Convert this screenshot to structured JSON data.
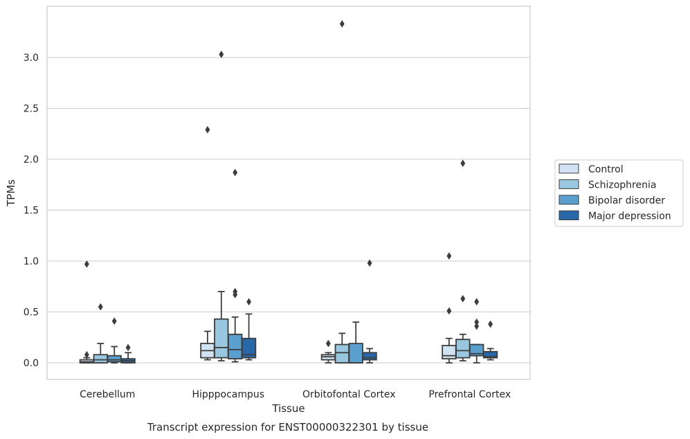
{
  "caption": "Transcript expression for ENST00000322301 by tissue",
  "chart_data": {
    "type": "boxplot",
    "xlabel": "Tissue",
    "ylabel": "TPMs",
    "ylim": [
      -0.16,
      3.48
    ],
    "yticks": [
      "0.0",
      "0.5",
      "1.0",
      "1.5",
      "2.0",
      "2.5",
      "3.0"
    ],
    "ytick_values": [
      0,
      0.5,
      1.0,
      1.5,
      2.0,
      2.5,
      3.0
    ],
    "grid": "horizontal",
    "legend_position": "right",
    "categories": [
      "Cerebellum",
      "Hipppocampus",
      "Orbitofontal Cortex",
      "Prefrontal Cortex"
    ],
    "series": [
      {
        "name": "Control",
        "color": "#d1e2f2",
        "boxes": [
          {
            "whisker_low": 0.0,
            "q1": 0.0,
            "median": 0.01,
            "q3": 0.03,
            "whisker_high": 0.05,
            "outliers": [
              0.08,
              0.97
            ]
          },
          {
            "whisker_low": 0.03,
            "q1": 0.05,
            "median": 0.12,
            "q3": 0.19,
            "whisker_high": 0.31,
            "outliers": [
              2.29
            ]
          },
          {
            "whisker_low": 0.0,
            "q1": 0.03,
            "median": 0.06,
            "q3": 0.08,
            "whisker_high": 0.1,
            "outliers": [
              0.19
            ]
          },
          {
            "whisker_low": 0.0,
            "q1": 0.04,
            "median": 0.07,
            "q3": 0.17,
            "whisker_high": 0.24,
            "outliers": [
              0.51,
              1.05
            ]
          }
        ]
      },
      {
        "name": "Schizophrenia",
        "color": "#9ac7e0",
        "boxes": [
          {
            "whisker_low": 0.0,
            "q1": 0.0,
            "median": 0.03,
            "q3": 0.08,
            "whisker_high": 0.19,
            "outliers": [
              0.55
            ]
          },
          {
            "whisker_low": 0.02,
            "q1": 0.05,
            "median": 0.15,
            "q3": 0.43,
            "whisker_high": 0.7,
            "outliers": [
              3.03
            ]
          },
          {
            "whisker_low": 0.0,
            "q1": 0.0,
            "median": 0.1,
            "q3": 0.18,
            "whisker_high": 0.29,
            "outliers": [
              3.33
            ]
          },
          {
            "whisker_low": 0.02,
            "q1": 0.05,
            "median": 0.12,
            "q3": 0.23,
            "whisker_high": 0.28,
            "outliers": [
              0.63,
              1.96
            ]
          }
        ]
      },
      {
        "name": "Bipolar disorder",
        "color": "#5a9fcd",
        "boxes": [
          {
            "whisker_low": 0.0,
            "q1": 0.01,
            "median": 0.03,
            "q3": 0.07,
            "whisker_high": 0.16,
            "outliers": [
              0.41
            ]
          },
          {
            "whisker_low": 0.01,
            "q1": 0.04,
            "median": 0.13,
            "q3": 0.28,
            "whisker_high": 0.45,
            "outliers": [
              0.67,
              0.7,
              1.87
            ]
          },
          {
            "whisker_low": 0.0,
            "q1": 0.0,
            "median": 0.0,
            "q3": 0.19,
            "whisker_high": 0.4,
            "outliers": []
          },
          {
            "whisker_low": 0.0,
            "q1": 0.07,
            "median": 0.09,
            "q3": 0.18,
            "whisker_high": 0.18,
            "outliers": [
              0.36,
              0.4,
              0.6
            ]
          }
        ]
      },
      {
        "name": "Major depression",
        "color": "#2868a8",
        "boxes": [
          {
            "whisker_low": 0.0,
            "q1": 0.0,
            "median": 0.02,
            "q3": 0.04,
            "whisker_high": 0.1,
            "outliers": [
              0.15
            ]
          },
          {
            "whisker_low": 0.03,
            "q1": 0.05,
            "median": 0.08,
            "q3": 0.24,
            "whisker_high": 0.48,
            "outliers": [
              0.6
            ]
          },
          {
            "whisker_low": 0.0,
            "q1": 0.03,
            "median": 0.05,
            "q3": 0.1,
            "whisker_high": 0.14,
            "outliers": [
              0.98
            ]
          },
          {
            "whisker_low": 0.03,
            "q1": 0.05,
            "median": 0.06,
            "q3": 0.11,
            "whisker_high": 0.14,
            "outliers": [
              0.38
            ]
          }
        ]
      }
    ]
  }
}
